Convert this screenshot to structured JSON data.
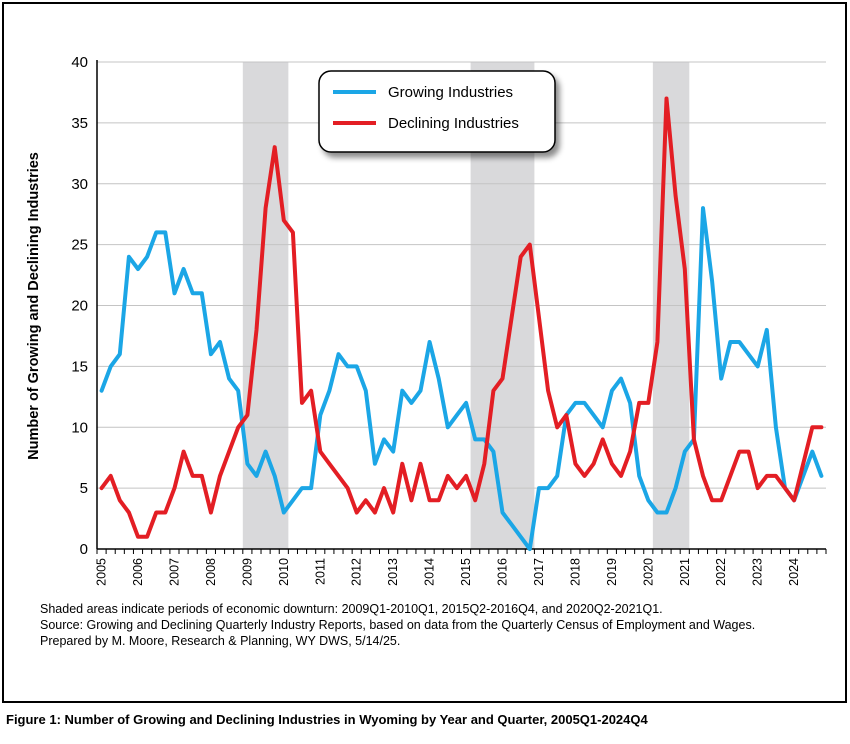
{
  "chart_data": {
    "type": "line",
    "ylabel": "Number of Growing and Declining Industries",
    "ylim": [
      0,
      40
    ],
    "yticks": [
      "0",
      "5",
      "10",
      "15",
      "20",
      "25",
      "30",
      "35",
      "40"
    ],
    "xticks": [
      "2005",
      "2006",
      "2007",
      "2008",
      "2009",
      "2010",
      "2011",
      "2012",
      "2013",
      "2014",
      "2015",
      "2016",
      "2017",
      "2018",
      "2019",
      "2020",
      "2021",
      "2022",
      "2023",
      "2024"
    ],
    "quarters_per_year": 4,
    "start_year": 2005,
    "shaded_periods": [
      {
        "start": "2009Q1",
        "end": "2010Q1"
      },
      {
        "start": "2015Q2",
        "end": "2016Q4"
      },
      {
        "start": "2020Q2",
        "end": "2021Q1"
      }
    ],
    "legend_position": "top-center",
    "grid": "horizontal",
    "series": [
      {
        "name": "Growing Industries",
        "color": "#1ba6e6",
        "values": [
          13,
          15,
          16,
          24,
          23,
          24,
          26,
          26,
          21,
          23,
          21,
          21,
          16,
          17,
          14,
          13,
          7,
          6,
          8,
          6,
          3,
          4,
          5,
          5,
          11,
          13,
          16,
          15,
          15,
          13,
          7,
          9,
          8,
          13,
          12,
          13,
          17,
          14,
          10,
          11,
          12,
          9,
          9,
          8,
          3,
          2,
          1,
          0,
          5,
          5,
          6,
          11,
          12,
          12,
          11,
          10,
          13,
          14,
          12,
          6,
          4,
          3,
          3,
          5,
          8,
          9,
          28,
          22,
          14,
          17,
          17,
          16,
          15,
          18,
          10,
          5,
          4,
          6,
          8,
          6
        ]
      },
      {
        "name": "Declining Industries",
        "color": "#e31e24",
        "values": [
          5,
          6,
          4,
          3,
          1,
          1,
          3,
          3,
          5,
          8,
          6,
          6,
          3,
          6,
          8,
          10,
          11,
          18,
          28,
          33,
          27,
          26,
          12,
          13,
          8,
          7,
          6,
          5,
          3,
          4,
          3,
          5,
          3,
          7,
          4,
          7,
          4,
          4,
          6,
          5,
          6,
          4,
          7,
          13,
          14,
          19,
          24,
          25,
          19,
          13,
          10,
          11,
          7,
          6,
          7,
          9,
          7,
          6,
          8,
          12,
          12,
          17,
          37,
          29,
          23,
          9,
          6,
          4,
          4,
          6,
          8,
          8,
          5,
          6,
          6,
          5,
          4,
          7,
          10,
          10
        ]
      }
    ]
  },
  "notes": {
    "shading": "Shaded areas indicate periods of economic downturn: 2009Q1-2010Q1, 2015Q2-2016Q4, and 2020Q2-2021Q1.",
    "source": "Source: Growing and Declining Quarterly Industry Reports, based on data from the Quarterly Census of Employment and Wages.",
    "prepared": "Prepared by M. Moore, Research & Planning, WY DWS, 5/14/25."
  },
  "caption": "Figure 1: Number of Growing and Declining Industries in Wyoming by Year and Quarter, 2005Q1-2024Q4"
}
